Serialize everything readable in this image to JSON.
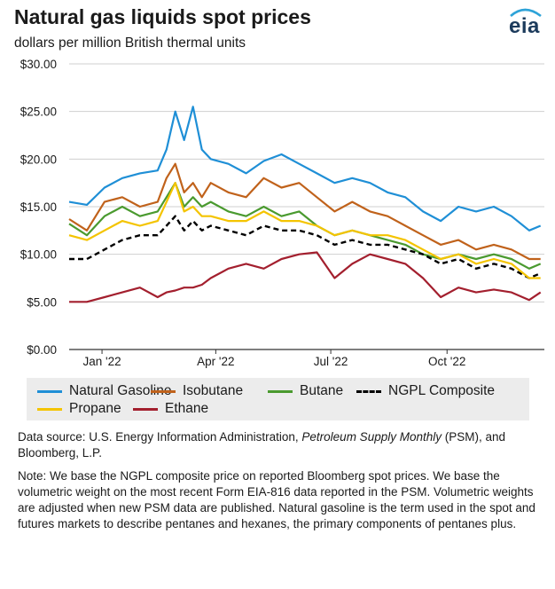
{
  "title": "Natural gas liquids spot prices",
  "subtitle": "dollars per million British thermal units",
  "logo": "eia",
  "source_prefix": "Data source: U.S. Energy Information Administration, ",
  "source_italic": "Petroleum Supply Monthly",
  "source_suffix": " (PSM), and Bloomberg, L.P.",
  "note": "Note: We base the NGPL composite price on reported Bloomberg spot prices. We base the volumetric weight on the most recent Form EIA-816 data reported in the PSM. Volumetric weights are adjusted when new PSM data are published. Natural gasoline is the term used in the spot and futures markets to describe pentanes and hexanes, the primary components of pentanes plus.",
  "chart_data": {
    "type": "line",
    "title": "Natural gas liquids spot prices",
    "ylabel": "dollars per million British thermal units",
    "ylim": [
      0,
      30
    ],
    "y_ticks": [
      0,
      5,
      10,
      15,
      20,
      25,
      30
    ],
    "y_tick_labels": [
      "$0.00",
      "$5.00",
      "$10.00",
      "$15.00",
      "$20.00",
      "$25.00",
      "$30.00"
    ],
    "xlim": [
      "2021-12-20",
      "2022-12-31"
    ],
    "x_ticks": [
      "2022-01-15",
      "2022-04-15",
      "2022-07-15",
      "2022-10-15"
    ],
    "x_tick_labels": [
      "Jan '22",
      "Apr '22",
      "Jul '22",
      "Oct '22"
    ],
    "grid": "horizontal",
    "legend_position": "bottom",
    "x": [
      "2021-12-20",
      "2022-01-03",
      "2022-01-17",
      "2022-01-31",
      "2022-02-14",
      "2022-02-28",
      "2022-03-07",
      "2022-03-14",
      "2022-03-21",
      "2022-03-28",
      "2022-04-04",
      "2022-04-11",
      "2022-04-25",
      "2022-05-09",
      "2022-05-23",
      "2022-06-06",
      "2022-06-20",
      "2022-07-04",
      "2022-07-18",
      "2022-08-01",
      "2022-08-15",
      "2022-08-29",
      "2022-09-12",
      "2022-09-26",
      "2022-10-10",
      "2022-10-24",
      "2022-11-07",
      "2022-11-21",
      "2022-12-05",
      "2022-12-19",
      "2022-12-28"
    ],
    "series": [
      {
        "name": "Natural Gasoline",
        "color": "#1f8fd6",
        "dash": false,
        "values": [
          15.5,
          15.2,
          17.0,
          18.0,
          18.5,
          18.8,
          21.0,
          25.0,
          22.0,
          25.5,
          21.0,
          20.0,
          19.5,
          18.5,
          19.8,
          20.5,
          19.5,
          18.5,
          17.5,
          18.0,
          17.5,
          16.5,
          16.0,
          14.5,
          13.5,
          15.0,
          14.5,
          15.0,
          14.0,
          12.5,
          13.0
        ]
      },
      {
        "name": "Isobutane",
        "color": "#c0621b",
        "dash": false,
        "values": [
          13.7,
          12.5,
          15.5,
          16.0,
          15.0,
          15.5,
          18.0,
          19.5,
          16.5,
          17.5,
          16.0,
          17.5,
          16.5,
          16.0,
          18.0,
          17.0,
          17.5,
          16.0,
          14.5,
          15.5,
          14.5,
          14.0,
          13.0,
          12.0,
          11.0,
          11.5,
          10.5,
          11.0,
          10.5,
          9.5,
          9.5
        ]
      },
      {
        "name": "Butane",
        "color": "#4a9a2f",
        "dash": false,
        "values": [
          13.2,
          12.0,
          14.0,
          15.0,
          14.0,
          14.5,
          16.0,
          17.5,
          15.0,
          16.0,
          15.0,
          15.5,
          14.5,
          14.0,
          15.0,
          14.0,
          14.5,
          13.0,
          12.0,
          12.5,
          12.0,
          11.5,
          11.0,
          10.0,
          9.5,
          10.0,
          9.5,
          10.0,
          9.5,
          8.5,
          9.0
        ]
      },
      {
        "name": "NGPL Composite",
        "color": "#000000",
        "dash": true,
        "values": [
          9.5,
          9.5,
          10.5,
          11.5,
          12.0,
          12.0,
          13.0,
          14.0,
          12.5,
          13.5,
          12.5,
          13.0,
          12.5,
          12.0,
          13.0,
          12.5,
          12.5,
          12.0,
          11.0,
          11.5,
          11.0,
          11.0,
          10.5,
          10.0,
          9.0,
          9.5,
          8.5,
          9.0,
          8.5,
          7.5,
          8.0
        ]
      },
      {
        "name": "Propane",
        "color": "#f4c400",
        "dash": false,
        "values": [
          12.0,
          11.5,
          12.5,
          13.5,
          13.0,
          13.5,
          15.5,
          17.5,
          14.5,
          15.0,
          14.0,
          14.0,
          13.5,
          13.5,
          14.5,
          13.5,
          13.5,
          13.0,
          12.0,
          12.5,
          12.0,
          12.0,
          11.5,
          10.5,
          9.5,
          10.0,
          9.0,
          9.5,
          9.0,
          7.5,
          7.5
        ]
      },
      {
        "name": "Ethane",
        "color": "#a31f2e",
        "dash": false,
        "values": [
          5.0,
          5.0,
          5.5,
          6.0,
          6.5,
          5.5,
          6.0,
          6.2,
          6.5,
          6.5,
          6.8,
          7.5,
          8.5,
          9.0,
          8.5,
          9.5,
          10.0,
          10.2,
          7.5,
          9.0,
          10.0,
          9.5,
          9.0,
          7.5,
          5.5,
          6.5,
          6.0,
          6.3,
          6.0,
          5.2,
          6.0
        ]
      }
    ]
  }
}
